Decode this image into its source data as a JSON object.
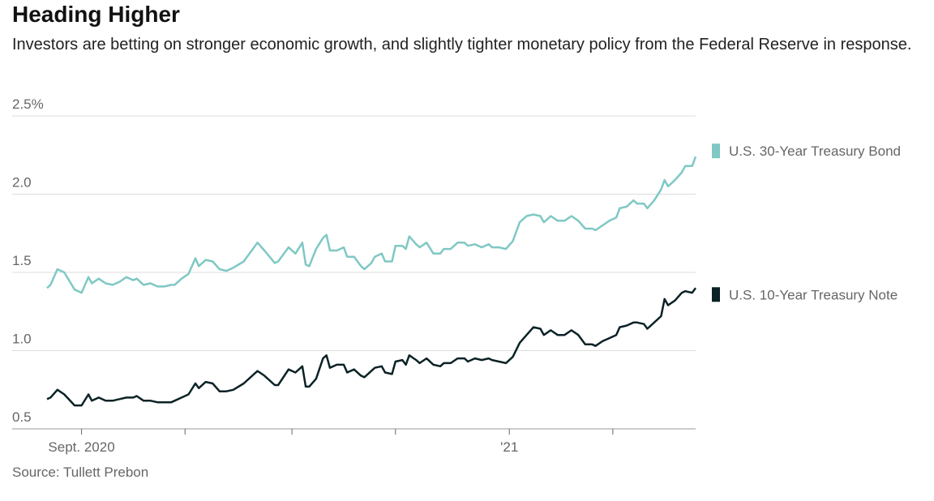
{
  "chart_data": {
    "type": "line",
    "title": "Heading Higher",
    "subtitle": "Investors are betting on stronger economic growth, and slightly tighter monetary policy from the Federal Reserve in response.",
    "source": "Source: Tullett Prebon",
    "x": [
      0,
      1,
      3,
      5,
      8,
      10,
      12,
      13,
      15,
      17,
      19,
      21,
      23,
      25,
      26,
      28,
      30,
      32,
      34,
      36,
      37,
      39,
      41,
      43,
      44,
      46,
      48,
      50,
      52,
      54,
      57,
      59,
      61,
      63,
      66,
      67,
      70,
      72,
      74,
      75,
      76,
      78,
      80,
      81,
      82,
      84,
      86,
      87,
      89,
      91,
      92,
      94,
      95,
      97,
      98,
      100,
      101,
      103,
      104,
      105,
      107,
      108,
      110,
      112,
      114,
      115,
      117,
      119,
      121,
      122,
      124,
      126,
      128,
      129,
      131,
      133,
      135,
      137,
      139,
      141,
      143,
      144,
      146,
      148,
      150,
      152,
      154,
      156,
      158,
      159,
      161,
      163,
      165,
      166,
      168,
      170,
      171,
      173,
      174,
      176,
      178,
      179,
      180,
      182,
      184,
      185,
      187,
      188
    ],
    "series": [
      {
        "name": "U.S. 30-Year Treasury Bond",
        "color": "#7fc8c4",
        "values": [
          1.4,
          1.42,
          1.52,
          1.5,
          1.39,
          1.37,
          1.47,
          1.43,
          1.46,
          1.43,
          1.42,
          1.44,
          1.47,
          1.45,
          1.46,
          1.42,
          1.43,
          1.41,
          1.41,
          1.42,
          1.42,
          1.46,
          1.49,
          1.59,
          1.54,
          1.58,
          1.57,
          1.52,
          1.51,
          1.53,
          1.57,
          1.63,
          1.69,
          1.64,
          1.56,
          1.57,
          1.66,
          1.62,
          1.69,
          1.55,
          1.54,
          1.65,
          1.72,
          1.74,
          1.64,
          1.64,
          1.66,
          1.6,
          1.6,
          1.54,
          1.52,
          1.56,
          1.6,
          1.62,
          1.57,
          1.57,
          1.67,
          1.67,
          1.65,
          1.73,
          1.68,
          1.66,
          1.69,
          1.62,
          1.62,
          1.65,
          1.65,
          1.69,
          1.69,
          1.67,
          1.68,
          1.66,
          1.68,
          1.66,
          1.66,
          1.65,
          1.7,
          1.82,
          1.86,
          1.87,
          1.86,
          1.82,
          1.86,
          1.83,
          1.83,
          1.86,
          1.83,
          1.78,
          1.78,
          1.77,
          1.8,
          1.83,
          1.85,
          1.91,
          1.92,
          1.96,
          1.94,
          1.94,
          1.91,
          1.96,
          2.03,
          2.09,
          2.05,
          2.09,
          2.14,
          2.18,
          2.18,
          2.24
        ]
      },
      {
        "name": "U.S. 10-Year Treasury Note",
        "color": "#0b2226",
        "values": [
          0.69,
          0.7,
          0.75,
          0.72,
          0.65,
          0.65,
          0.72,
          0.68,
          0.7,
          0.68,
          0.68,
          0.69,
          0.7,
          0.7,
          0.71,
          0.68,
          0.68,
          0.67,
          0.67,
          0.67,
          0.68,
          0.7,
          0.72,
          0.79,
          0.76,
          0.8,
          0.79,
          0.74,
          0.74,
          0.75,
          0.79,
          0.83,
          0.87,
          0.84,
          0.78,
          0.78,
          0.88,
          0.86,
          0.9,
          0.77,
          0.77,
          0.82,
          0.95,
          0.97,
          0.89,
          0.91,
          0.91,
          0.86,
          0.88,
          0.84,
          0.83,
          0.87,
          0.89,
          0.9,
          0.86,
          0.85,
          0.93,
          0.94,
          0.91,
          0.97,
          0.94,
          0.92,
          0.95,
          0.91,
          0.9,
          0.92,
          0.92,
          0.95,
          0.95,
          0.93,
          0.95,
          0.94,
          0.95,
          0.94,
          0.93,
          0.92,
          0.96,
          1.05,
          1.1,
          1.15,
          1.14,
          1.1,
          1.13,
          1.1,
          1.1,
          1.13,
          1.1,
          1.04,
          1.04,
          1.03,
          1.06,
          1.08,
          1.1,
          1.15,
          1.16,
          1.18,
          1.18,
          1.17,
          1.14,
          1.18,
          1.22,
          1.33,
          1.29,
          1.32,
          1.37,
          1.38,
          1.37,
          1.4
        ]
      }
    ],
    "xlim": [
      0,
      188
    ],
    "xticks": [
      10,
      40,
      71,
      101,
      134,
      164
    ],
    "xlabels": [
      {
        "value": 10,
        "label": "Sept. 2020"
      },
      {
        "value": 134,
        "label": "'21"
      }
    ],
    "ylim": [
      0.5,
      2.5
    ],
    "yticks": [
      {
        "value": 0.5,
        "label": "0.5"
      },
      {
        "value": 1.0,
        "label": "1.0"
      },
      {
        "value": 1.5,
        "label": "1.5"
      },
      {
        "value": 2.0,
        "label": "2.0"
      },
      {
        "value": 2.5,
        "label": "2.5%"
      }
    ],
    "grid": true
  }
}
